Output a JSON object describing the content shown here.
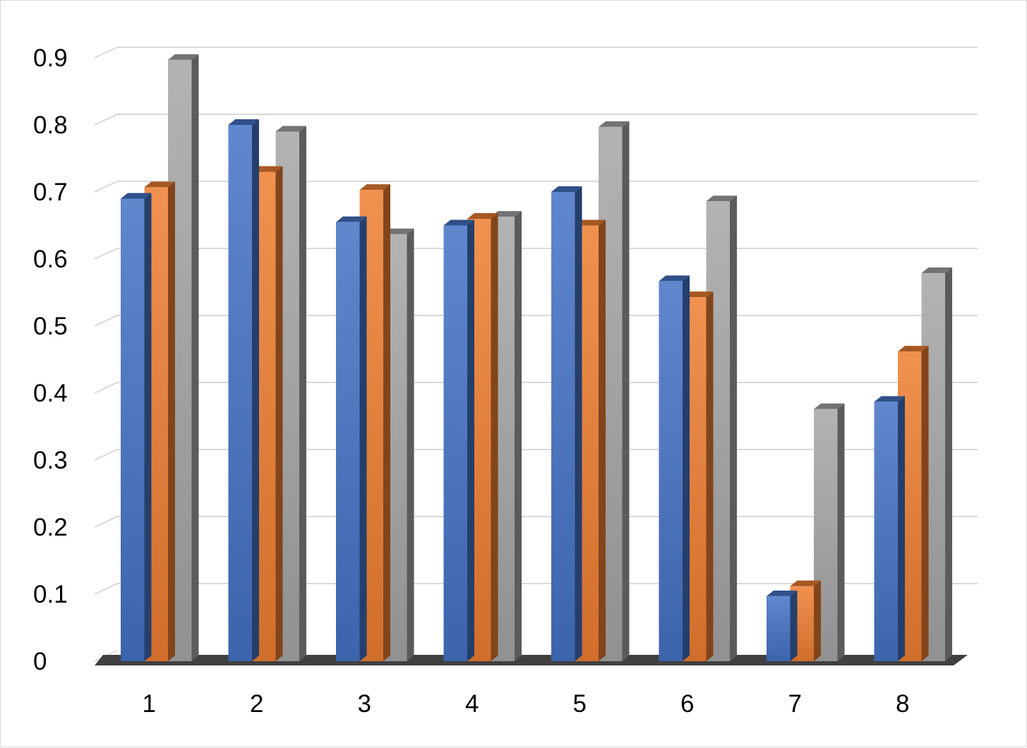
{
  "chart_data": {
    "type": "bar",
    "style": "3d-clustered-column",
    "categories": [
      "1",
      "2",
      "3",
      "4",
      "5",
      "6",
      "7",
      "8"
    ],
    "series": [
      {
        "color": "#4472c4",
        "values": [
          0.69,
          0.8,
          0.655,
          0.65,
          0.7,
          0.567,
          0.097,
          0.387
        ]
      },
      {
        "color": "#ed7d31",
        "values": [
          0.707,
          0.73,
          0.703,
          0.66,
          0.65,
          0.543,
          0.112,
          0.462
        ]
      },
      {
        "color": "#a5a5a5",
        "values": [
          0.897,
          0.79,
          0.637,
          0.663,
          0.797,
          0.686,
          0.376,
          0.579
        ]
      }
    ],
    "y_ticks": [
      "0",
      "0.1",
      "0.2",
      "0.3",
      "0.4",
      "0.5",
      "0.6",
      "0.7",
      "0.8",
      "0.9"
    ],
    "ylim": [
      0,
      0.9
    ],
    "grid": true,
    "legend": "none",
    "title": "",
    "xlabel": "",
    "ylabel": ""
  }
}
